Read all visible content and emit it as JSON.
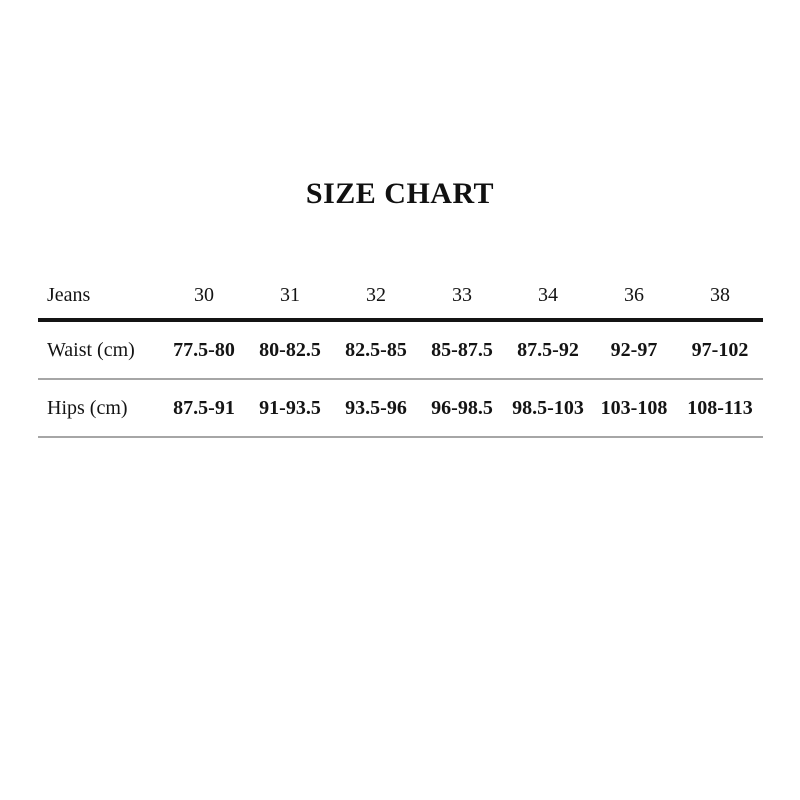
{
  "page": {
    "background": "#ffffff"
  },
  "title": "SIZE CHART",
  "size_table": {
    "header": {
      "label": "Jeans",
      "sizes": [
        "30",
        "31",
        "32",
        "33",
        "34",
        "36",
        "38"
      ]
    },
    "rows": [
      {
        "label": "Waist (cm)",
        "values": [
          "77.5-80",
          "80-82.5",
          "82.5-85",
          "85-87.5",
          "87.5-92",
          "92-97",
          "97-102"
        ]
      },
      {
        "label": "Hips (cm)",
        "values": [
          "87.5-91",
          "91-93.5",
          "93.5-96",
          "96-98.5",
          "98.5-103",
          "103-108",
          "108-113"
        ]
      }
    ]
  },
  "colors": {
    "text": "#141414",
    "thick_rule": "#141414",
    "thin_rule": "#a6a6a6"
  }
}
